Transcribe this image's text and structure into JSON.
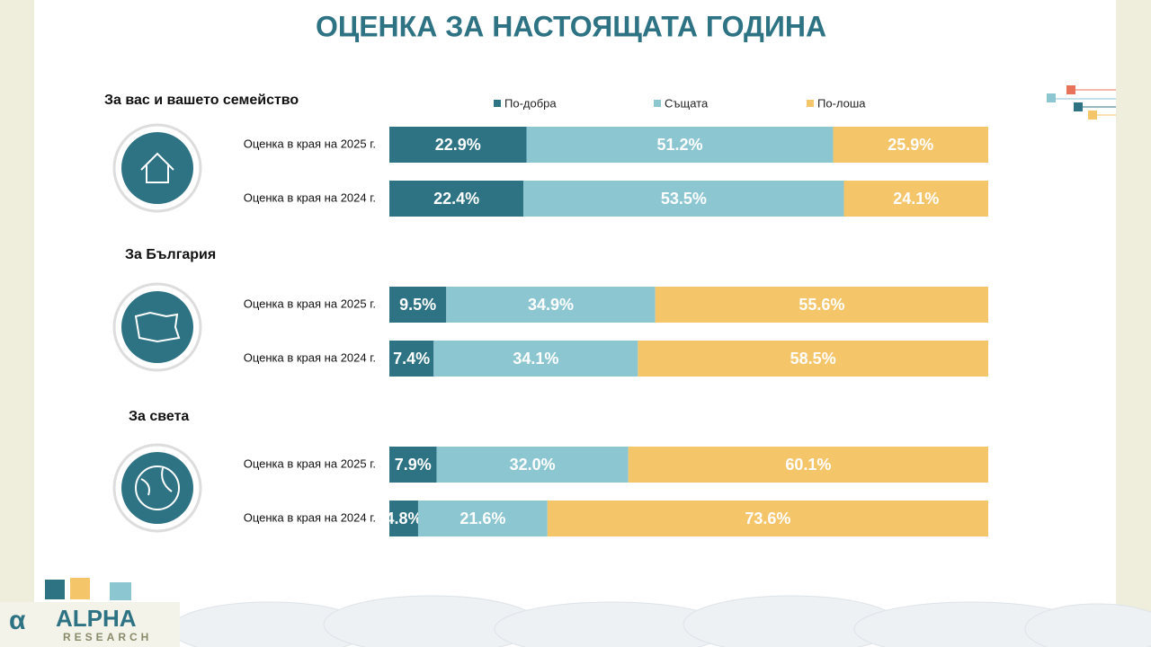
{
  "title": "ОЦЕНКА ЗА НАСТОЯЩАТА ГОДИНА",
  "logo": {
    "name": "ALPHA",
    "sub": "RESEARCH"
  },
  "chart_data": {
    "type": "bar",
    "orientation": "horizontal",
    "stacked": true,
    "groups": [
      "За вас и вашето семейство",
      "За България",
      "За света"
    ],
    "categories": [
      "Оценка в края на 2025 г.",
      "Оценка в края на 2024 г.",
      "Оценка в края на 2025 г.",
      "Оценка в края на 2024 г.",
      "Оценка в края на 2025 г.",
      "Оценка в края на 2024 г."
    ],
    "series": [
      {
        "name": "По-добра",
        "color": "#2e7384",
        "values": [
          22.9,
          22.4,
          9.5,
          7.4,
          7.9,
          4.8
        ],
        "value_labels": [
          "22.9%",
          "22.4%",
          "9.5%",
          "7.4%",
          "7.9%",
          "4.8%"
        ]
      },
      {
        "name": "Същата",
        "color": "#8cc6d1",
        "values": [
          51.2,
          53.5,
          34.9,
          34.1,
          32.0,
          21.6
        ],
        "value_labels": [
          "51.2%",
          "53.5%",
          "34.9%",
          "34.1%",
          "32.0%",
          "21.6%"
        ]
      },
      {
        "name": "По-лоша",
        "color": "#f5c56a",
        "values": [
          25.9,
          24.1,
          55.6,
          58.5,
          60.1,
          73.6
        ],
        "value_labels": [
          "25.9%",
          "24.1%",
          "55.6%",
          "58.5%",
          "60.1%",
          "73.6%"
        ]
      }
    ]
  }
}
